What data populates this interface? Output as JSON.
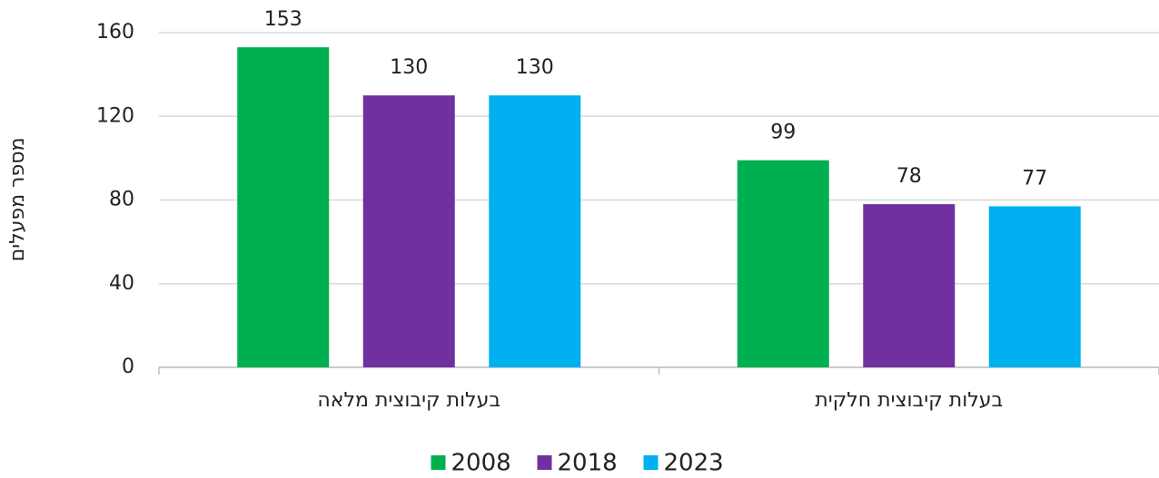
{
  "chart_data": {
    "type": "bar",
    "y_label": "מספר מפעלים",
    "categories": [
      "בעלות קיבוצית מלאה",
      "בעלות קיבוצית חלקית"
    ],
    "series": [
      {
        "name": "2008",
        "color": "#00b050",
        "values": [
          153,
          99
        ]
      },
      {
        "name": "2018",
        "color": "#7030a0",
        "values": [
          130,
          78
        ]
      },
      {
        "name": "2023",
        "color": "#00b0f0",
        "values": [
          130,
          77
        ]
      }
    ],
    "ylim": [
      0,
      160
    ],
    "yticks": [
      0,
      40,
      80,
      120,
      160
    ],
    "grid": true,
    "legend": "bottom"
  }
}
